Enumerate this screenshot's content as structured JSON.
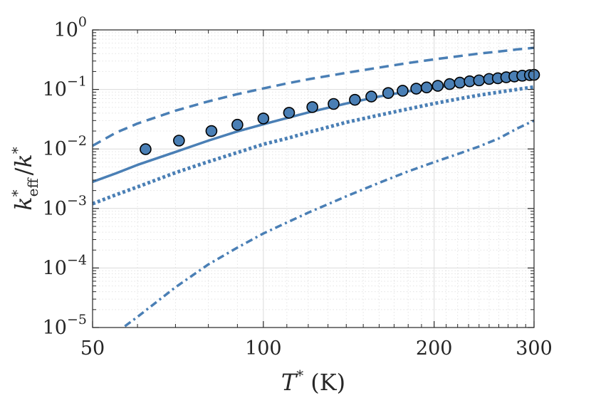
{
  "chart_data": {
    "type": "line",
    "title": "",
    "xlabel": "T* (K)",
    "xlabel_parts": {
      "main": "T",
      "sup": "*",
      "unit": "(K)"
    },
    "ylabel": "k*_eff / k*",
    "ylabel_parts": {
      "k": "k",
      "sup": "*",
      "sub": "eff",
      "slash": "/",
      "k2": "k",
      "sup2": "*"
    },
    "xscale": "log",
    "yscale": "log",
    "xlim": [
      50,
      300
    ],
    "ylim": [
      1e-05,
      1
    ],
    "grid": true,
    "colors": {
      "series": "#4a7fb5",
      "axis": "#262626",
      "grid_major": "#dcdcdc",
      "grid_minor": "#e4e4e4"
    },
    "x_ticks": [
      {
        "value": 50,
        "label": "50"
      },
      {
        "value": 100,
        "label": "100"
      },
      {
        "value": 200,
        "label": "200"
      },
      {
        "value": 300,
        "label": "300"
      }
    ],
    "y_ticks": [
      {
        "value": 1,
        "base": "10",
        "exp": "0"
      },
      {
        "value": 0.1,
        "base": "10",
        "exp": "−1"
      },
      {
        "value": 0.01,
        "base": "10",
        "exp": "−2"
      },
      {
        "value": 0.001,
        "base": "10",
        "exp": "−3"
      },
      {
        "value": 0.0001,
        "base": "10",
        "exp": "−4"
      },
      {
        "value": 1e-05,
        "base": "10",
        "exp": "−5"
      }
    ],
    "series": [
      {
        "name": "dashed",
        "style": "dashed",
        "x": [
          50,
          55,
          60,
          70,
          80,
          90,
          100,
          110,
          120,
          140,
          160,
          180,
          200,
          220,
          240,
          260,
          280,
          300
        ],
        "y": [
          0.0113,
          0.0188,
          0.0267,
          0.0439,
          0.063,
          0.0833,
          0.104,
          0.126,
          0.148,
          0.19,
          0.233,
          0.278,
          0.32,
          0.36,
          0.4,
          0.433,
          0.47,
          0.5
        ]
      },
      {
        "name": "solid",
        "style": "solid",
        "x": [
          50,
          55,
          60,
          70,
          80,
          90,
          100,
          110,
          120,
          140,
          160,
          180,
          200,
          220,
          240,
          260,
          280,
          300
        ],
        "y": [
          0.0028,
          0.0039,
          0.0054,
          0.0089,
          0.0138,
          0.0197,
          0.026,
          0.033,
          0.041,
          0.058,
          0.076,
          0.093,
          0.105,
          0.12,
          0.133,
          0.145,
          0.158,
          0.165
        ]
      },
      {
        "name": "dotted",
        "style": "dotted",
        "x": [
          50,
          55,
          60,
          70,
          80,
          90,
          100,
          110,
          120,
          140,
          160,
          180,
          200,
          220,
          240,
          260,
          280,
          300
        ],
        "y": [
          0.0012,
          0.0017,
          0.0023,
          0.004,
          0.0061,
          0.0087,
          0.012,
          0.015,
          0.019,
          0.028,
          0.037,
          0.047,
          0.058,
          0.069,
          0.08,
          0.09,
          0.1,
          0.11
        ]
      },
      {
        "name": "dash-dot",
        "style": "dashdot",
        "x": [
          57,
          60,
          70,
          80,
          90,
          100,
          110,
          120,
          140,
          160,
          180,
          200,
          220,
          240,
          260,
          280,
          300
        ],
        "y": [
          1.05e-05,
          1.51e-05,
          4.75e-05,
          0.000115,
          0.00022,
          0.00038,
          0.00058,
          0.00085,
          0.0016,
          0.0027,
          0.0042,
          0.006,
          0.0082,
          0.011,
          0.015,
          0.022,
          0.03
        ]
      },
      {
        "name": "markers",
        "style": "circles",
        "x": [
          62,
          71,
          81,
          90,
          100,
          111,
          122,
          133,
          145,
          155,
          166,
          176,
          186,
          194,
          203,
          213,
          222,
          231,
          240,
          250,
          259,
          268,
          277,
          286,
          295,
          300
        ],
        "y": [
          0.0099,
          0.0138,
          0.02,
          0.0255,
          0.0325,
          0.0405,
          0.0505,
          0.057,
          0.067,
          0.076,
          0.087,
          0.095,
          0.103,
          0.108,
          0.115,
          0.123,
          0.13,
          0.137,
          0.142,
          0.15,
          0.154,
          0.16,
          0.165,
          0.17,
          0.174,
          0.176
        ]
      }
    ]
  }
}
